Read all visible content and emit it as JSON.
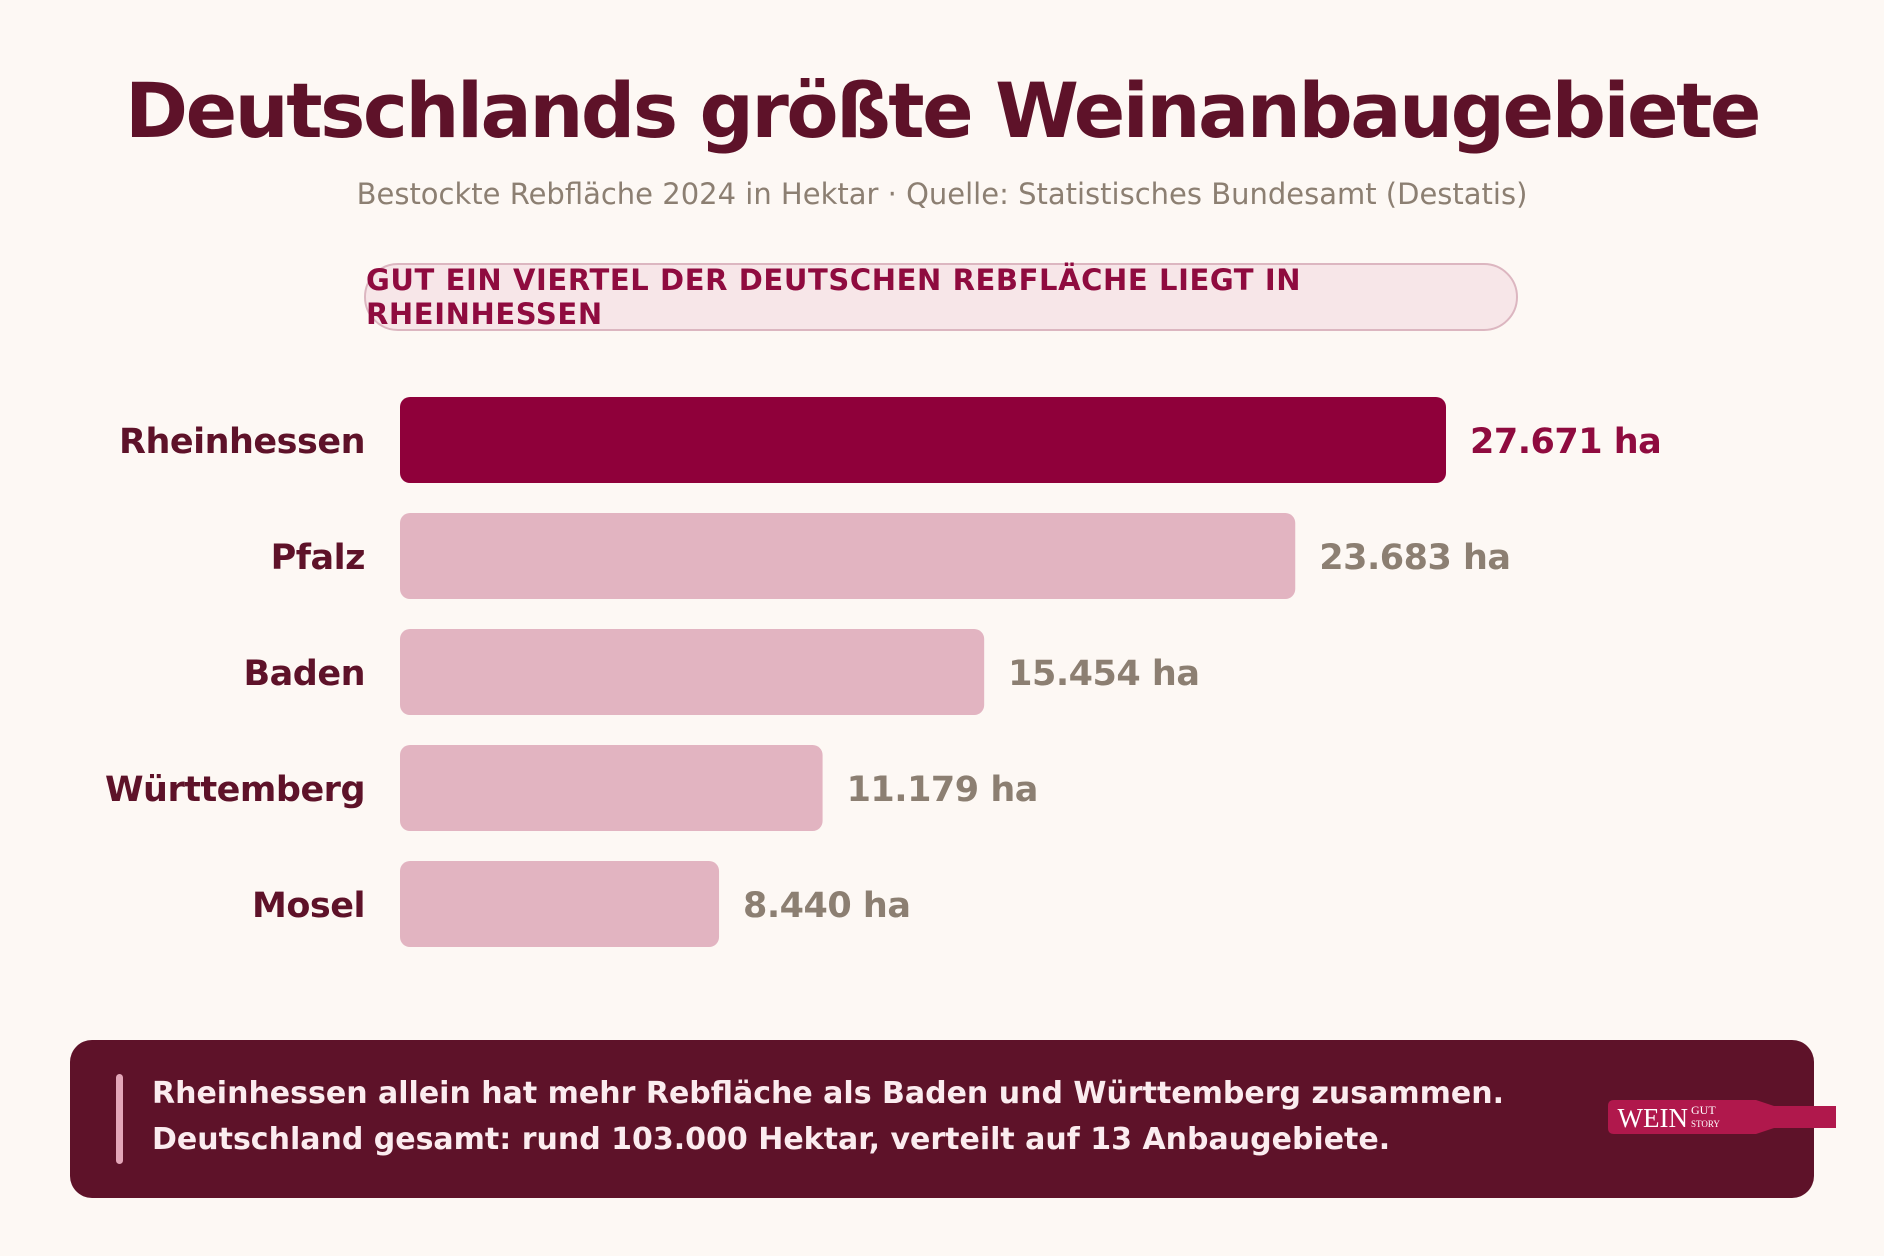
{
  "header": {
    "title": "Deutschlands größte Weinanbaugebiete",
    "subtitle": "Bestockte Rebfläche 2024 in Hektar · Quelle: Statistisches Bundesamt (Destatis)",
    "highlight": "GUT EIN VIERTEL DER DEUTSCHEN REBFLÄCHE LIEGT IN RHEINHESSEN"
  },
  "chart_data": {
    "type": "bar",
    "orientation": "horizontal",
    "categories": [
      "Rheinhessen",
      "Pfalz",
      "Baden",
      "Württemberg",
      "Mosel"
    ],
    "values": [
      27671,
      23683,
      15454,
      11179,
      8440
    ],
    "value_labels": [
      "27.671 ha",
      "23.683 ha",
      "15.454 ha",
      "11.179 ha",
      "8.440 ha"
    ],
    "unit": "ha",
    "highlight_index": 0,
    "colors": {
      "highlight_bar": "#8f003a",
      "bar": "#e2b4c1",
      "highlight_label": "#8f0b3f",
      "value_label": "#8c7f72",
      "category_label": "#5e1229"
    }
  },
  "footer": {
    "line1": "Rheinhessen allein hat mehr Rebfläche als Baden und Württemberg  zusammen.",
    "line2": "Deutschland gesamt: rund 103.000 Hektar,  verteilt auf 13 Anbaugebiete.",
    "logo": {
      "word": "WEIN",
      "small_top": "GUT",
      "small_bottom": "STORY"
    }
  },
  "colors": {
    "background": "#fdf8f4",
    "title": "#5e1229",
    "footer_bg": "#5e1229",
    "pill_bg": "#f7e6e8",
    "logo_bg": "#b0184c"
  }
}
